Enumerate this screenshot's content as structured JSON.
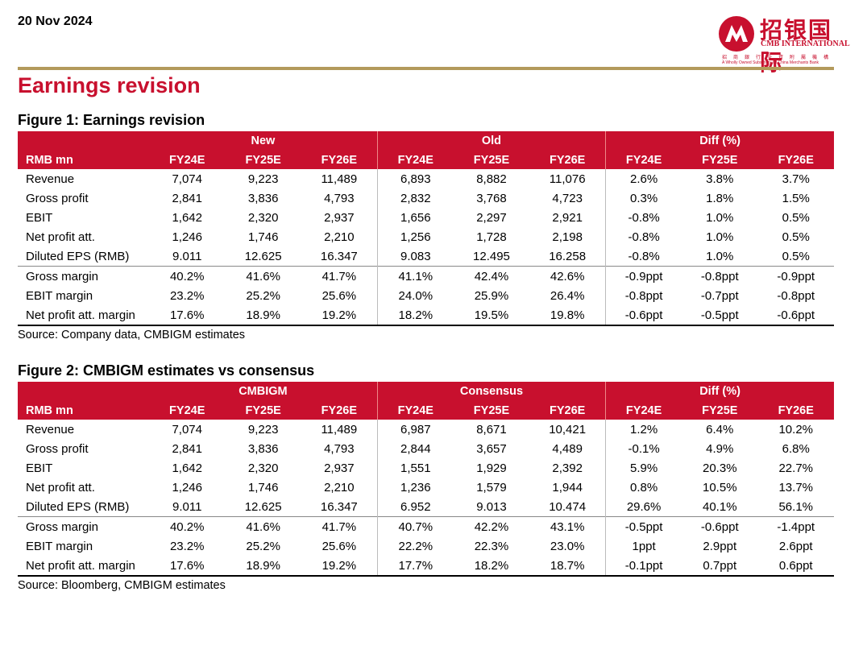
{
  "header": {
    "date": "20 Nov 2024",
    "logo": {
      "cn": "招银国际",
      "en": "CMB INTERNATIONAL",
      "sub_cn": "招商銀行全資附屬機構",
      "sub_en": "A Wholly Owned Subsidiary Of China Merchants Bank"
    }
  },
  "heading": "Earnings revision",
  "figures": [
    {
      "title": "Figure 1: Earnings revision",
      "groups": [
        "New",
        "Old",
        "Diff (%)"
      ],
      "columns": [
        "RMB mn",
        "FY24E",
        "FY25E",
        "FY26E",
        "FY24E",
        "FY25E",
        "FY26E",
        "FY24E",
        "FY25E",
        "FY26E"
      ],
      "rows": [
        [
          "Revenue",
          "7,074",
          "9,223",
          "11,489",
          "6,893",
          "8,882",
          "11,076",
          "2.6%",
          "3.8%",
          "3.7%"
        ],
        [
          "Gross profit",
          "2,841",
          "3,836",
          "4,793",
          "2,832",
          "3,768",
          "4,723",
          "0.3%",
          "1.8%",
          "1.5%"
        ],
        [
          "EBIT",
          "1,642",
          "2,320",
          "2,937",
          "1,656",
          "2,297",
          "2,921",
          "-0.8%",
          "1.0%",
          "0.5%"
        ],
        [
          "Net profit att.",
          "1,246",
          "1,746",
          "2,210",
          "1,256",
          "1,728",
          "2,198",
          "-0.8%",
          "1.0%",
          "0.5%"
        ],
        [
          "Diluted EPS (RMB)",
          "9.011",
          "12.625",
          "16.347",
          "9.083",
          "12.495",
          "16.258",
          "-0.8%",
          "1.0%",
          "0.5%"
        ],
        [
          "Gross margin",
          "40.2%",
          "41.6%",
          "41.7%",
          "41.1%",
          "42.4%",
          "42.6%",
          "-0.9ppt",
          "-0.8ppt",
          "-0.9ppt"
        ],
        [
          "EBIT margin",
          "23.2%",
          "25.2%",
          "25.6%",
          "24.0%",
          "25.9%",
          "26.4%",
          "-0.8ppt",
          "-0.7ppt",
          "-0.8ppt"
        ],
        [
          "Net profit att. margin",
          "17.6%",
          "18.9%",
          "19.2%",
          "18.2%",
          "19.5%",
          "19.8%",
          "-0.6ppt",
          "-0.5ppt",
          "-0.6ppt"
        ]
      ],
      "source": "Source: Company data, CMBIGM estimates"
    },
    {
      "title": "Figure 2: CMBIGM estimates vs consensus",
      "groups": [
        "CMBIGM",
        "Consensus",
        "Diff (%)"
      ],
      "columns": [
        "RMB mn",
        "FY24E",
        "FY25E",
        "FY26E",
        "FY24E",
        "FY25E",
        "FY26E",
        "FY24E",
        "FY25E",
        "FY26E"
      ],
      "rows": [
        [
          "Revenue",
          "7,074",
          "9,223",
          "11,489",
          "6,987",
          "8,671",
          "10,421",
          "1.2%",
          "6.4%",
          "10.2%"
        ],
        [
          "Gross profit",
          "2,841",
          "3,836",
          "4,793",
          "2,844",
          "3,657",
          "4,489",
          "-0.1%",
          "4.9%",
          "6.8%"
        ],
        [
          "EBIT",
          "1,642",
          "2,320",
          "2,937",
          "1,551",
          "1,929",
          "2,392",
          "5.9%",
          "20.3%",
          "22.7%"
        ],
        [
          "Net profit att.",
          "1,246",
          "1,746",
          "2,210",
          "1,236",
          "1,579",
          "1,944",
          "0.8%",
          "10.5%",
          "13.7%"
        ],
        [
          "Diluted EPS (RMB)",
          "9.011",
          "12.625",
          "16.347",
          "6.952",
          "9.013",
          "10.474",
          "29.6%",
          "40.1%",
          "56.1%"
        ],
        [
          "Gross margin",
          "40.2%",
          "41.6%",
          "41.7%",
          "40.7%",
          "42.2%",
          "43.1%",
          "-0.5ppt",
          "-0.6ppt",
          "-1.4ppt"
        ],
        [
          "EBIT margin",
          "23.2%",
          "25.2%",
          "25.6%",
          "22.2%",
          "22.3%",
          "23.0%",
          "1ppt",
          "2.9ppt",
          "2.6ppt"
        ],
        [
          "Net profit att. margin",
          "17.6%",
          "18.9%",
          "19.2%",
          "17.7%",
          "18.2%",
          "18.7%",
          "-0.1ppt",
          "0.7ppt",
          "0.6ppt"
        ]
      ],
      "source": "Source: Bloomberg, CMBIGM estimates"
    }
  ]
}
